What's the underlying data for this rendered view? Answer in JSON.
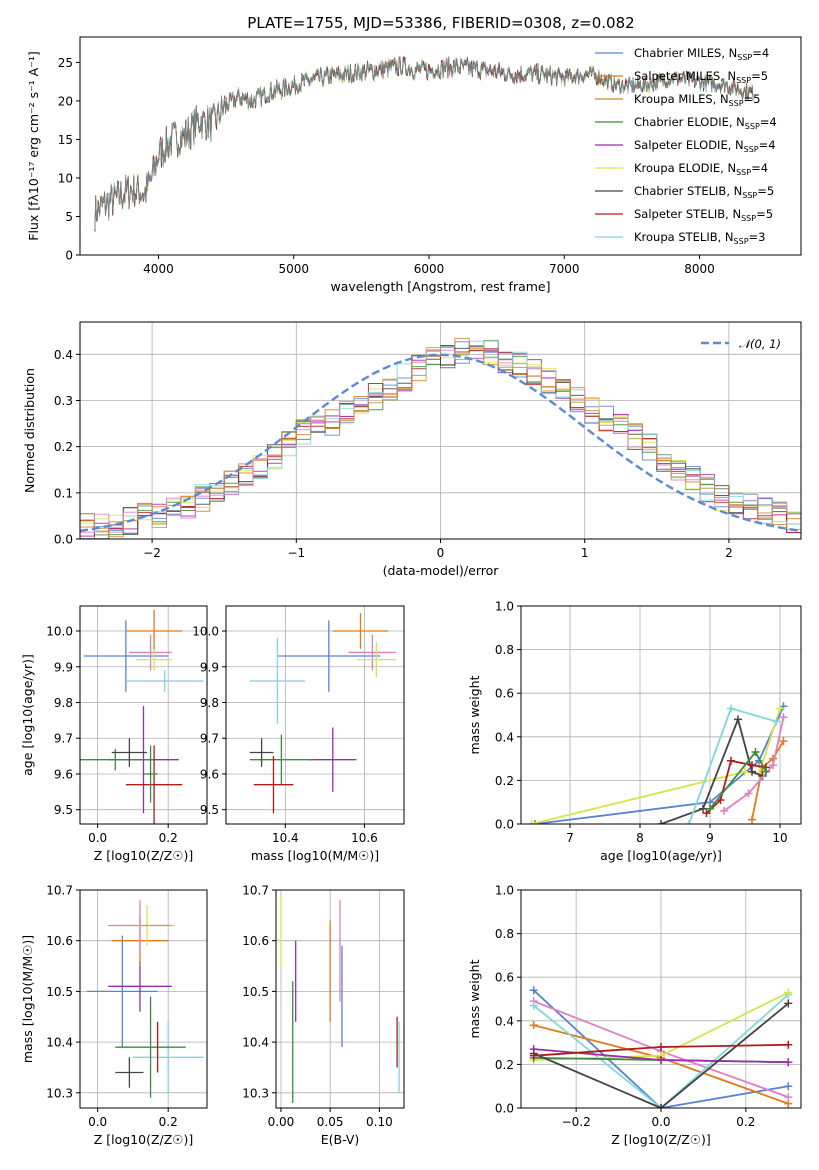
{
  "title": "PLATE=1755, MJD=53386, FIBERID=0308, z=0.082",
  "colors": {
    "c1": "#5a82d6",
    "c2": "#e07b1c",
    "c3": "#c98b2d",
    "c4": "#3c8c3c",
    "c5": "#9a2bb2",
    "c6": "#d6e64a",
    "c7": "#444444",
    "c8": "#b01c1c",
    "c9": "#7fd8e0",
    "c10": "#e07fc0",
    "gray": "#707070",
    "dash": "#5a8ad6"
  },
  "chart_data": [
    {
      "id": "spectrum",
      "type": "line",
      "xlabel": "wavelength [Angstrom, rest frame]",
      "ylabel": "Flux [fλ10⁻¹⁷ erg cm⁻² s⁻¹ A⁻¹]",
      "xlim": [
        3420,
        8750
      ],
      "ylim": [
        0,
        28.3
      ],
      "xticks": [
        4000,
        5000,
        6000,
        7000,
        8000
      ],
      "yticks": [
        0,
        5,
        10,
        15,
        20,
        25
      ],
      "legend_position": "top-right",
      "legend": [
        "Chabrier MILES, N_SSP=4",
        "Salpeter MILES, N_SSP=5",
        "Kroupa MILES, N_SSP=5",
        "Chabrier ELODIE, N_SSP=4",
        "Salpeter ELODIE, N_SSP=4",
        "Kroupa ELODIE, N_SSP=4",
        "Chabrier STELIB, N_SSP=5",
        "Salpeter STELIB, N_SSP=5",
        "Kroupa STELIB, N_SSP=3"
      ],
      "legend_labels": [
        {
          "pre": "Chabrier MILES, N",
          "sub": "SSP",
          "post": "=4"
        },
        {
          "pre": "Salpeter MILES, N",
          "sub": "SSP",
          "post": "=5"
        },
        {
          "pre": "Kroupa MILES, N",
          "sub": "SSP",
          "post": "=5"
        },
        {
          "pre": "Chabrier ELODIE, N",
          "sub": "SSP",
          "post": "=4"
        },
        {
          "pre": "Salpeter ELODIE, N",
          "sub": "SSP",
          "post": "=4"
        },
        {
          "pre": "Kroupa ELODIE, N",
          "sub": "SSP",
          "post": "=4"
        },
        {
          "pre": "Chabrier STELIB, N",
          "sub": "SSP",
          "post": "=5"
        },
        {
          "pre": "Salpeter STELIB, N",
          "sub": "SSP",
          "post": "=5"
        },
        {
          "pre": "Kroupa STELIB, N",
          "sub": "SSP",
          "post": "=3"
        }
      ],
      "legend_colors": [
        "#5a82d6",
        "#e07b1c",
        "#c98b2d",
        "#3c8c3c",
        "#9a2bb2",
        "#d6e64a",
        "#444444",
        "#b01c1c",
        "#7fd8e0"
      ],
      "x": [
        3530,
        3600,
        3700,
        3800,
        3900,
        3950,
        4000,
        4100,
        4200,
        4300,
        4400,
        4500,
        4600,
        4700,
        4800,
        4900,
        5000,
        5200,
        5400,
        5600,
        5800,
        5900,
        6000,
        6200,
        6400,
        6600,
        6800,
        7000,
        7200,
        7400,
        7600,
        7800,
        8000,
        8200,
        8400
      ],
      "y": [
        5.5,
        6.5,
        7.5,
        8.5,
        8.0,
        10.0,
        13.0,
        15.0,
        15.5,
        17.5,
        17.0,
        19.5,
        20.5,
        20.0,
        21.0,
        21.5,
        22.0,
        23.0,
        23.5,
        24.0,
        24.5,
        24.0,
        24.0,
        24.5,
        24.0,
        23.5,
        23.5,
        23.0,
        23.5,
        22.0,
        22.0,
        23.0,
        22.5,
        22.0,
        21.0
      ]
    },
    {
      "id": "residuals",
      "type": "histogram",
      "xlabel": "(data-model)/error",
      "ylabel": "Normed distribution",
      "xlim": [
        -2.5,
        2.5
      ],
      "ylim": [
        0,
        0.47
      ],
      "xticks": [
        -2,
        -1,
        0,
        1,
        2
      ],
      "yticks": [
        0.0,
        0.1,
        0.2,
        0.3,
        0.4
      ],
      "legend_position": "top-right",
      "legend": [
        "N(0,1)"
      ],
      "legend_label": "𝒩(0, 1)",
      "bin_width": 0.1,
      "bins_from": -2.5,
      "values": [
        0.03,
        0.03,
        0.03,
        0.04,
        0.05,
        0.05,
        0.06,
        0.07,
        0.09,
        0.1,
        0.12,
        0.14,
        0.16,
        0.18,
        0.21,
        0.23,
        0.24,
        0.25,
        0.27,
        0.29,
        0.31,
        0.33,
        0.35,
        0.37,
        0.39,
        0.4,
        0.41,
        0.41,
        0.4,
        0.39,
        0.38,
        0.36,
        0.34,
        0.32,
        0.3,
        0.28,
        0.26,
        0.24,
        0.22,
        0.2,
        0.17,
        0.15,
        0.13,
        0.11,
        0.09,
        0.08,
        0.07,
        0.06,
        0.05,
        0.04
      ]
    },
    {
      "id": "age-vs-Z",
      "type": "scatter",
      "xlabel": "Z [log10(Z/Z☉)]",
      "ylabel": "age [log10(age/yr)]",
      "xlim": [
        -0.05,
        0.31
      ],
      "ylim": [
        9.46,
        10.07
      ],
      "xticks": [
        0.0,
        0.2
      ],
      "yticks": [
        9.5,
        9.6,
        9.7,
        9.8,
        9.9,
        10.0
      ],
      "points": [
        {
          "x": 0.08,
          "y": 9.93,
          "xerr": 0.12,
          "yerr": 0.1,
          "color": "#5a82d6"
        },
        {
          "x": 0.16,
          "y": 10.0,
          "xerr": 0.08,
          "yerr": 0.06,
          "color": "#e07b1c"
        },
        {
          "x": 0.15,
          "y": 9.94,
          "xerr": 0.06,
          "yerr": 0.05,
          "color": "#e07fc0"
        },
        {
          "x": 0.16,
          "y": 9.92,
          "xerr": 0.05,
          "yerr": 0.03,
          "color": "#d6e64a"
        },
        {
          "x": 0.19,
          "y": 9.86,
          "xerr": 0.11,
          "yerr": 0.03,
          "color": "#7fd8e0"
        },
        {
          "x": 0.13,
          "y": 9.64,
          "xerr": 0.1,
          "yerr": 0.15,
          "color": "#9a2bb2"
        },
        {
          "x": 0.05,
          "y": 9.64,
          "xerr": 0.11,
          "yerr": 0.03,
          "color": "#3c8c3c"
        },
        {
          "x": 0.09,
          "y": 9.66,
          "xerr": 0.05,
          "yerr": 0.04,
          "color": "#444444"
        },
        {
          "x": 0.16,
          "y": 9.57,
          "xerr": 0.08,
          "yerr": 0.11,
          "color": "#b01c1c"
        },
        {
          "x": 0.15,
          "y": 9.6,
          "xerr": 0.02,
          "yerr": 0.08,
          "color": "#3c8c3c"
        }
      ]
    },
    {
      "id": "age-vs-mass",
      "type": "scatter",
      "xlabel": "mass [log10(M/M☉)]",
      "ylabel": "",
      "xlim": [
        10.25,
        10.7
      ],
      "ylim": [
        9.46,
        10.07
      ],
      "xticks": [
        10.4,
        10.6
      ],
      "yticks": [
        9.5,
        9.6,
        9.7,
        9.8,
        9.9,
        10.0
      ],
      "points": [
        {
          "x": 10.51,
          "y": 9.93,
          "xerr": 0.13,
          "yerr": 0.1,
          "color": "#5a82d6"
        },
        {
          "x": 10.59,
          "y": 10.0,
          "xerr": 0.07,
          "yerr": 0.05,
          "color": "#e07b1c"
        },
        {
          "x": 10.62,
          "y": 9.94,
          "xerr": 0.06,
          "yerr": 0.05,
          "color": "#e07fc0"
        },
        {
          "x": 10.63,
          "y": 9.92,
          "xerr": 0.05,
          "yerr": 0.05,
          "color": "#d6e64a"
        },
        {
          "x": 10.38,
          "y": 9.86,
          "xerr": 0.07,
          "yerr": 0.12,
          "color": "#7fd8e0"
        },
        {
          "x": 10.52,
          "y": 9.64,
          "xerr": 0.06,
          "yerr": 0.09,
          "color": "#9a2bb2"
        },
        {
          "x": 10.39,
          "y": 9.64,
          "xerr": 0.08,
          "yerr": 0.07,
          "color": "#3c8c3c"
        },
        {
          "x": 10.34,
          "y": 9.66,
          "xerr": 0.03,
          "yerr": 0.04,
          "color": "#444444"
        },
        {
          "x": 10.37,
          "y": 9.57,
          "xerr": 0.05,
          "yerr": 0.08,
          "color": "#b01c1c"
        }
      ]
    },
    {
      "id": "massweight-vs-age",
      "type": "line",
      "xlabel": "age [log10(age/yr)]",
      "ylabel": "mass weight",
      "xlim": [
        6.3,
        10.3
      ],
      "ylim": [
        0,
        1.0
      ],
      "xticks": [
        7,
        8,
        9,
        10
      ],
      "yticks": [
        0.0,
        0.2,
        0.4,
        0.6,
        0.8,
        1.0
      ],
      "series": [
        {
          "color": "#5a82d6",
          "x": [
            6.5,
            9.0,
            9.7,
            10.05
          ],
          "y": [
            0.0,
            0.1,
            0.29,
            0.54
          ]
        },
        {
          "color": "#e07b1c",
          "x": [
            9.6,
            9.75,
            9.9,
            10.05
          ],
          "y": [
            0.02,
            0.26,
            0.3,
            0.38
          ]
        },
        {
          "color": "#d6e64a",
          "x": [
            6.45,
            9.5,
            9.7,
            10.0
          ],
          "y": [
            0.0,
            0.24,
            0.23,
            0.53
          ]
        },
        {
          "color": "#444444",
          "x": [
            8.3,
            8.9,
            9.4,
            9.6,
            9.75
          ],
          "y": [
            0.0,
            0.07,
            0.48,
            0.24,
            0.22
          ]
        },
        {
          "color": "#b01c1c",
          "x": [
            8.95,
            9.15,
            9.3,
            9.6,
            9.8
          ],
          "y": [
            0.05,
            0.11,
            0.29,
            0.27,
            0.26
          ]
        },
        {
          "color": "#7fd8e0",
          "x": [
            8.7,
            9.3,
            9.95
          ],
          "y": [
            0.0,
            0.53,
            0.47
          ]
        },
        {
          "color": "#e07fc0",
          "x": [
            9.2,
            9.55,
            9.9,
            10.05
          ],
          "y": [
            0.06,
            0.14,
            0.27,
            0.49
          ]
        },
        {
          "color": "#3c8c3c",
          "x": [
            9.0,
            9.65,
            9.8
          ],
          "y": [
            0.07,
            0.33,
            0.24
          ]
        }
      ]
    },
    {
      "id": "mass-vs-Z",
      "type": "scatter",
      "xlabel": "Z [log10(Z/Z☉)]",
      "ylabel": "mass [log10(M/M☉)]",
      "xlim": [
        -0.05,
        0.31
      ],
      "ylim": [
        10.27,
        10.7
      ],
      "xticks": [
        0.0,
        0.2
      ],
      "yticks": [
        10.3,
        10.4,
        10.5,
        10.6,
        10.7
      ],
      "points": [
        {
          "x": 0.07,
          "y": 10.5,
          "xerr": 0.1,
          "yerr": 0.11,
          "color": "#5a82d6"
        },
        {
          "x": 0.12,
          "y": 10.51,
          "xerr": 0.09,
          "yerr": 0.05,
          "color": "#9a2bb2"
        },
        {
          "x": 0.12,
          "y": 10.6,
          "xerr": 0.08,
          "yerr": 0.05,
          "color": "#e07b1c"
        },
        {
          "x": 0.14,
          "y": 10.63,
          "xerr": 0.08,
          "yerr": 0.04,
          "color": "#d6e64a"
        },
        {
          "x": 0.12,
          "y": 10.63,
          "xerr": 0.09,
          "yerr": 0.05,
          "color": "#e07fc0"
        },
        {
          "x": 0.2,
          "y": 10.37,
          "xerr": 0.1,
          "yerr": 0.07,
          "color": "#7fd8e0"
        },
        {
          "x": 0.15,
          "y": 10.39,
          "xerr": 0.1,
          "yerr": 0.1,
          "color": "#3c8c3c"
        },
        {
          "x": 0.09,
          "y": 10.34,
          "xerr": 0.04,
          "yerr": 0.03,
          "color": "#444444"
        },
        {
          "x": 0.17,
          "y": 10.39,
          "xerr": 0.0,
          "yerr": 0.05,
          "color": "#b01c1c"
        }
      ]
    },
    {
      "id": "mass-vs-EBV",
      "type": "errorbar",
      "xlabel": "E(B-V)",
      "ylabel": "",
      "xlim": [
        -0.005,
        0.125
      ],
      "ylim": [
        10.27,
        10.7
      ],
      "xticks": [
        0.0,
        0.05,
        0.1
      ],
      "yticks": [
        10.3,
        10.4,
        10.5,
        10.6,
        10.7
      ],
      "points": [
        {
          "x": 0.0,
          "y": 10.62,
          "yerr": 0.07,
          "color": "#d6e64a"
        },
        {
          "x": 0.012,
          "y": 10.4,
          "yerr": 0.12,
          "color": "#3c8c3c"
        },
        {
          "x": 0.015,
          "y": 10.52,
          "yerr": 0.08,
          "color": "#9a2bb2"
        },
        {
          "x": 0.05,
          "y": 10.54,
          "yerr": 0.1,
          "color": "#e07b1c"
        },
        {
          "x": 0.06,
          "y": 10.58,
          "yerr": 0.1,
          "color": "#e07fc0"
        },
        {
          "x": 0.062,
          "y": 10.49,
          "yerr": 0.1,
          "color": "#5a82d6"
        },
        {
          "x": 0.118,
          "y": 10.4,
          "yerr": 0.05,
          "color": "#b01c1c"
        },
        {
          "x": 0.12,
          "y": 10.37,
          "yerr": 0.07,
          "color": "#7fd8e0"
        }
      ]
    },
    {
      "id": "massweight-vs-Z",
      "type": "line",
      "xlabel": "Z [log10(Z/Z☉)]",
      "ylabel": "mass weight",
      "xlim": [
        -0.33,
        0.33
      ],
      "ylim": [
        0,
        1.0
      ],
      "xticks": [
        -0.2,
        0.0,
        0.2
      ],
      "yticks": [
        0.0,
        0.2,
        0.4,
        0.6,
        0.8,
        1.0
      ],
      "series": [
        {
          "color": "#5a82d6",
          "x": [
            -0.3,
            0.0,
            0.3
          ],
          "y": [
            0.54,
            0.0,
            0.1
          ]
        },
        {
          "color": "#e07b1c",
          "x": [
            -0.3,
            0.0,
            0.3
          ],
          "y": [
            0.38,
            0.23,
            0.02
          ]
        },
        {
          "color": "#e07fc0",
          "x": [
            -0.3,
            0.0,
            0.3
          ],
          "y": [
            0.49,
            0.26,
            0.05
          ]
        },
        {
          "color": "#7fd8e0",
          "x": [
            -0.3,
            0.0,
            0.3
          ],
          "y": [
            0.47,
            0.0,
            0.52
          ]
        },
        {
          "color": "#d6e64a",
          "x": [
            -0.3,
            0.0,
            0.3
          ],
          "y": [
            0.22,
            0.24,
            0.53
          ]
        },
        {
          "color": "#3c8c3c",
          "x": [
            -0.3,
            0.0,
            0.3
          ],
          "y": [
            0.23,
            0.22,
            0.21
          ]
        },
        {
          "color": "#9a2bb2",
          "x": [
            -0.3,
            0.0,
            0.3
          ],
          "y": [
            0.27,
            0.22,
            0.21
          ]
        },
        {
          "color": "#444444",
          "x": [
            -0.3,
            0.0,
            0.3
          ],
          "y": [
            0.25,
            0.0,
            0.48
          ]
        },
        {
          "color": "#b01c1c",
          "x": [
            -0.3,
            0.0,
            0.3
          ],
          "y": [
            0.24,
            0.28,
            0.29
          ]
        }
      ]
    }
  ]
}
